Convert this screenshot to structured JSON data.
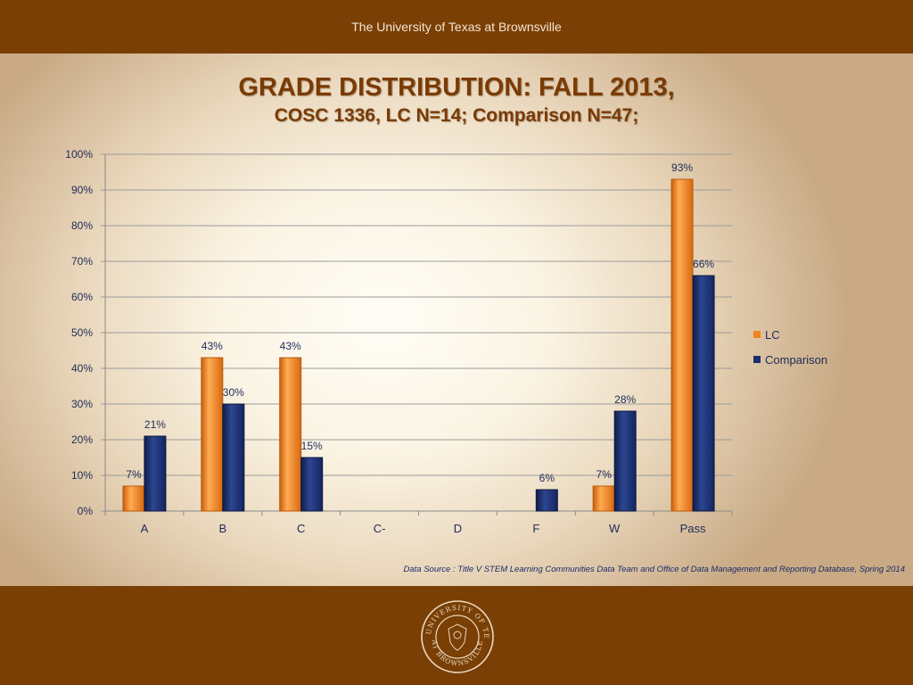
{
  "header": {
    "title": "The University of Texas at Brownsville"
  },
  "slide": {
    "title_line1": "GRADE DISTRIBUTION: FALL 2013,",
    "title_line2": "COSC 1336, LC N=14; Comparison N=47;"
  },
  "footer": {
    "source": "Data Source : Title V STEM Learning Communities Data Team and  Office of Data Management and Reporting Database, Spring 2014",
    "seal_top_text": "THE UNIVERSITY OF TEXAS",
    "seal_bottom_text": "AT BROWNSVILLE"
  },
  "colors": {
    "lc": "#f0821e",
    "comparison": "#1b2f6e",
    "grid": "#9b9b9b",
    "bar_brown": "#7a3f04"
  },
  "chart_data": {
    "type": "bar",
    "title": "GRADE DISTRIBUTION: FALL 2013, COSC 1336, LC N=14; Comparison N=47;",
    "xlabel": "",
    "ylabel": "",
    "categories": [
      "A",
      "B",
      "C",
      "C-",
      "D",
      "F",
      "W",
      "Pass"
    ],
    "series": [
      {
        "name": "LC",
        "values": [
          7,
          43,
          43,
          null,
          null,
          null,
          7,
          93
        ],
        "labels": [
          "7%",
          "43%",
          "43%",
          null,
          null,
          null,
          "7%",
          "93%"
        ]
      },
      {
        "name": "Comparison",
        "values": [
          21,
          30,
          15,
          null,
          null,
          6,
          28,
          66
        ],
        "labels": [
          "21%",
          "30%",
          "15%",
          null,
          null,
          "6%",
          "28%",
          "66%"
        ]
      }
    ],
    "ylim": [
      0,
      100
    ],
    "yticks": [
      "0%",
      "10%",
      "20%",
      "30%",
      "40%",
      "50%",
      "60%",
      "70%",
      "80%",
      "90%",
      "100%"
    ],
    "grid": true,
    "legend": "right"
  }
}
